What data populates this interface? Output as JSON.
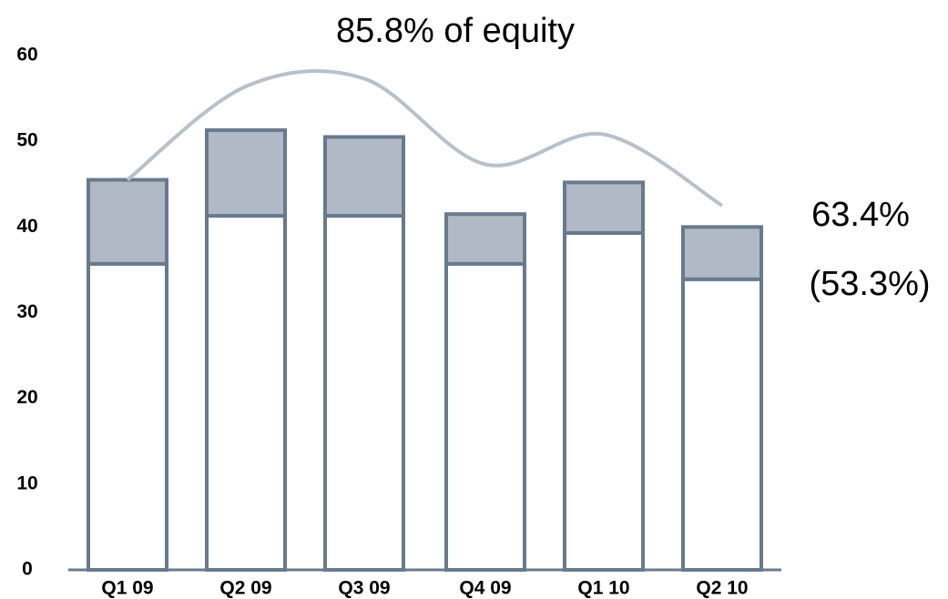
{
  "chart_data": {
    "type": "bar",
    "annotations": [
      "85.8% of equity",
      "63.4%",
      "(53.3%)"
    ],
    "categories": [
      "Q1 09",
      "Q2 09",
      "Q3 09",
      "Q4 09",
      "Q1 10",
      "Q2 10"
    ],
    "series": [
      {
        "color": "#ffffff",
        "values": [
          35.7,
          41.3,
          41.3,
          35.7,
          39.3,
          33.9
        ]
      },
      {
        "color": "#b0b9c5",
        "values": [
          9.8,
          10.0,
          9.2,
          5.8,
          5.9,
          6.1
        ]
      },
      {
        "type": "line",
        "color": "#b8c0ca",
        "values": [
          45.5,
          56.4,
          57.3,
          47.3,
          50.8,
          42.5
        ]
      }
    ],
    "stacked": true,
    "ylim": [
      0,
      60
    ],
    "yticks": [
      0,
      10,
      20,
      30,
      40,
      50,
      60
    ],
    "grid": false
  }
}
